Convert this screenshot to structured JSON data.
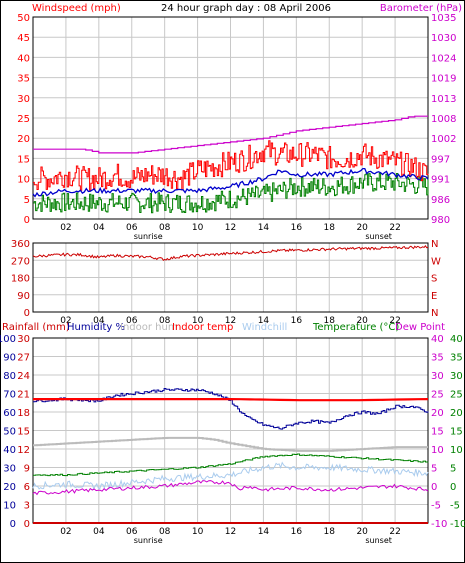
{
  "colors": {
    "wind": "#ff0000",
    "gust": "#ff0000",
    "wind_avg": "#0000cc",
    "wind_low": "#008000",
    "baro": "#cc00cc",
    "direction": "#cc0000",
    "rain": "#cc0000",
    "humidity": "#000099",
    "indoor_hum": "#bbbbbb",
    "indoor_temp": "#ff0000",
    "windchill": "#aaccee",
    "temperature": "#008000",
    "dewpoint": "#cc00cc",
    "grid": "#c8c8c8",
    "axis": "#000000"
  },
  "chart_data": [
    {
      "type": "line",
      "title": "24 hour graph day : 08 April 2006",
      "left_axis_label": "Windspeed (mph)",
      "right_axis_label": "Barometer (hPa)",
      "x_ticks": [
        "02",
        "04",
        "06",
        "08",
        "10",
        "12",
        "14",
        "16",
        "18",
        "20",
        "22"
      ],
      "x_annotations": [
        "sunrise",
        "sunset"
      ],
      "x_annotation_hours": [
        7.0,
        21.0
      ],
      "ylim_left": [
        0,
        50
      ],
      "yticks_left": [
        "50",
        "45",
        "40",
        "35",
        "30",
        "25",
        "20",
        "15",
        "10",
        "5",
        "0"
      ],
      "ylim_right": [
        980,
        1035
      ],
      "yticks_right": [
        "1035",
        "1030",
        "1024",
        "1019",
        "1013",
        "1008",
        "1002",
        "997",
        "991",
        "986",
        "980"
      ],
      "series": [
        {
          "name": "gust",
          "axis": "left",
          "hours": [
            0,
            1,
            2,
            3,
            4,
            5,
            6,
            7,
            8,
            9,
            10,
            11,
            12,
            13,
            14,
            15,
            16,
            17,
            18,
            19,
            20,
            21,
            22,
            23,
            24
          ],
          "values": [
            10,
            10,
            11,
            10,
            10,
            11,
            10,
            11,
            11,
            10,
            12,
            13,
            14,
            15,
            17,
            16,
            16,
            16,
            15,
            15,
            16,
            15,
            14,
            13,
            11
          ]
        },
        {
          "name": "average",
          "axis": "left",
          "hours": [
            0,
            2,
            4,
            6,
            8,
            10,
            12,
            13,
            14,
            15,
            16,
            18,
            20,
            22,
            24
          ],
          "values": [
            6,
            7,
            7,
            7,
            7,
            7,
            8,
            9,
            10,
            12,
            11,
            11,
            12,
            11,
            10
          ]
        },
        {
          "name": "low",
          "axis": "left",
          "hours": [
            0,
            2,
            4,
            6,
            8,
            10,
            12,
            14,
            15,
            16,
            18,
            20,
            22,
            24
          ],
          "values": [
            4,
            4,
            4,
            4,
            4,
            4,
            5,
            6,
            7,
            8,
            8,
            9,
            9,
            8
          ]
        },
        {
          "name": "barometer",
          "axis": "right",
          "hours": [
            0,
            3,
            4,
            6,
            8,
            10,
            12,
            14,
            15,
            16,
            18,
            20,
            22,
            23,
            24
          ],
          "values": [
            999,
            999,
            998,
            998,
            999,
            1000,
            1001,
            1002,
            1003,
            1004,
            1005,
            1006,
            1007,
            1008,
            1008
          ]
        }
      ]
    },
    {
      "type": "line",
      "yticks_left": [
        "360",
        "270",
        "180",
        "90",
        "0"
      ],
      "ylim_left": [
        0,
        360
      ],
      "right_labels": [
        "N",
        "W",
        "S",
        "E",
        "N"
      ],
      "x_ticks": [
        "02",
        "04",
        "06",
        "08",
        "10",
        "12",
        "14",
        "16",
        "18",
        "20",
        "22"
      ],
      "series": [
        {
          "name": "direction",
          "hours": [
            0,
            1,
            2,
            3,
            4,
            5,
            6,
            7,
            8,
            9,
            10,
            11,
            12,
            13,
            14,
            15,
            16,
            17,
            18,
            19,
            20,
            21,
            22,
            23,
            24
          ],
          "values": [
            290,
            295,
            300,
            298,
            285,
            295,
            290,
            288,
            275,
            290,
            295,
            300,
            305,
            310,
            315,
            320,
            322,
            325,
            328,
            330,
            332,
            333,
            335,
            338,
            340
          ]
        }
      ]
    },
    {
      "type": "line",
      "legend": [
        "Rainfall (mm)",
        "Humidity %",
        "Indoor hum",
        "Indoor temp",
        "Windchill",
        "Temperature (°C)",
        "Dew Point"
      ],
      "x_ticks": [
        "02",
        "04",
        "06",
        "08",
        "10",
        "12",
        "14",
        "16",
        "18",
        "20",
        "22"
      ],
      "x_annotations": [
        "sunrise",
        "sunset"
      ],
      "x_annotation_hours": [
        7.0,
        21.0
      ],
      "axis_rain": [
        "30",
        "27",
        "24",
        "21",
        "18",
        "15",
        "12",
        "9",
        "6",
        "3",
        "0"
      ],
      "axis_humidity": [
        "100",
        "90",
        "80",
        "70",
        "60",
        "50",
        "40",
        "30",
        "20",
        "10",
        "0"
      ],
      "axis_temp_right1": [
        "40",
        "35",
        "30",
        "25",
        "20",
        "15",
        "10",
        "5",
        "0",
        "-5",
        "-10"
      ],
      "axis_temp_right2": [
        "40",
        "35",
        "30",
        "25",
        "20",
        "15",
        "10",
        "5",
        "0",
        "-5",
        "-10"
      ],
      "ylim_humidity": [
        0,
        100
      ],
      "ylim_temp": [
        -10,
        40
      ],
      "series": [
        {
          "name": "Humidity %",
          "axis": "humidity",
          "hours": [
            0,
            2,
            4,
            5,
            6,
            8,
            10,
            11,
            12,
            12.5,
            13,
            14,
            15,
            16,
            17,
            18,
            19,
            20,
            21,
            22,
            23,
            24
          ],
          "values": [
            66,
            67,
            66,
            69,
            70,
            72,
            72,
            70,
            66,
            61,
            57,
            53,
            51,
            54,
            55,
            54,
            58,
            60,
            59,
            63,
            63,
            60
          ]
        },
        {
          "name": "Indoor hum",
          "axis": "humidity",
          "hours": [
            0,
            2,
            4,
            6,
            8,
            10,
            11,
            12,
            14,
            16,
            18,
            20,
            22,
            24
          ],
          "values": [
            42,
            43,
            44,
            45,
            46,
            46,
            45,
            43,
            40,
            39,
            39,
            40,
            41,
            41
          ]
        },
        {
          "name": "Indoor temp",
          "axis": "temp",
          "hours": [
            0,
            4,
            8,
            12,
            16,
            20,
            24
          ],
          "values": [
            23.5,
            23.5,
            23.5,
            23.5,
            23.2,
            23.2,
            23.5
          ]
        },
        {
          "name": "Windchill",
          "axis": "temp",
          "hours": [
            0,
            2,
            4,
            6,
            8,
            10,
            12,
            13,
            14,
            15,
            16,
            18,
            20,
            22,
            24
          ],
          "values": [
            0,
            0.5,
            0,
            1,
            2,
            2.5,
            3,
            4,
            5,
            5.5,
            5,
            5,
            4.5,
            4,
            3.5
          ]
        },
        {
          "name": "Temperature (°C)",
          "axis": "temp",
          "hours": [
            0,
            2,
            4,
            6,
            8,
            10,
            12,
            13,
            14,
            16,
            18,
            20,
            22,
            24
          ],
          "values": [
            3,
            3,
            3.5,
            4,
            4.5,
            5,
            6,
            7,
            8,
            8.5,
            8,
            7.5,
            7,
            6.5
          ]
        },
        {
          "name": "Dew Point",
          "axis": "temp",
          "hours": [
            0,
            2,
            4,
            6,
            8,
            10,
            12,
            12.5,
            13,
            14,
            16,
            18,
            20,
            22,
            24
          ],
          "values": [
            -2,
            -1.5,
            -1,
            -0.5,
            0,
            1,
            1,
            -1,
            0,
            -1,
            -0.5,
            -1,
            -0.5,
            0,
            -1
          ]
        },
        {
          "name": "Rainfall (mm)",
          "axis": "rain",
          "hours": [
            0,
            24
          ],
          "values": [
            0,
            0
          ]
        }
      ]
    }
  ]
}
